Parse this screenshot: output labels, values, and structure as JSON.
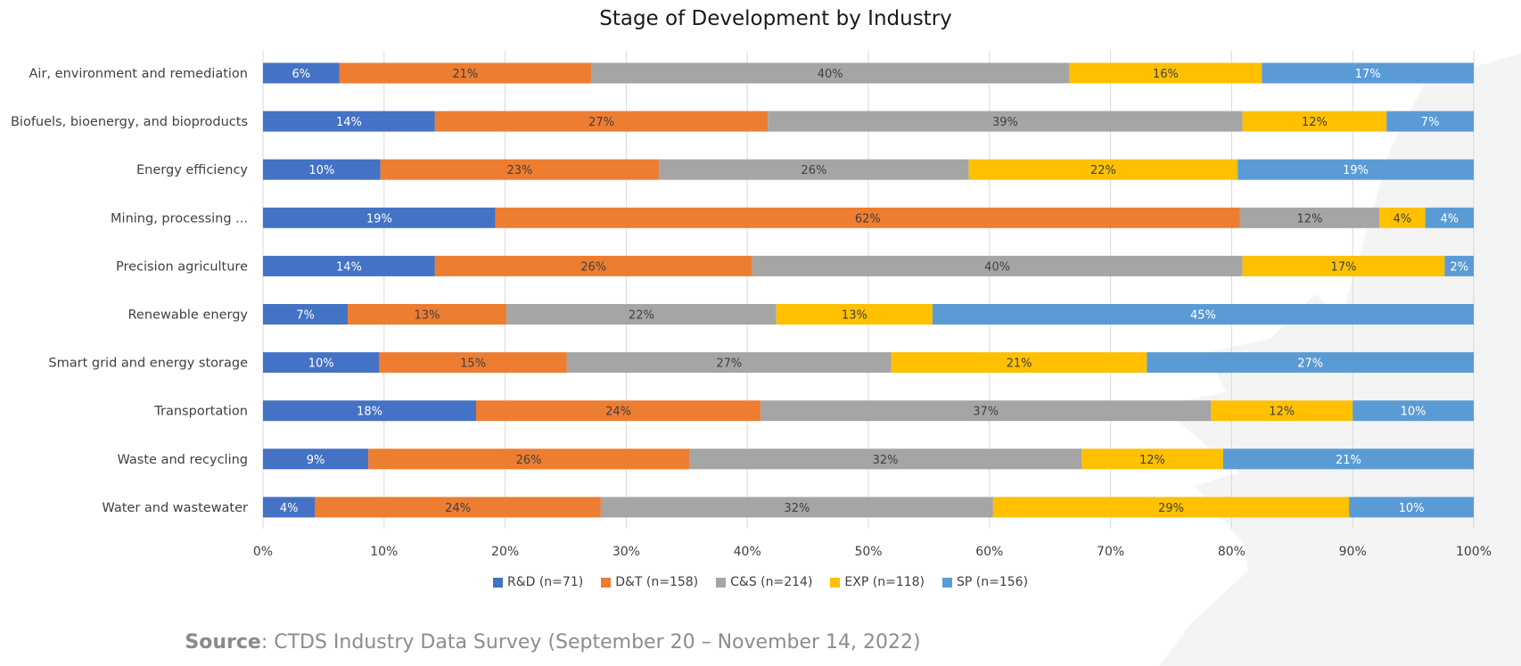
{
  "chart_data": {
    "type": "bar",
    "orientation": "horizontal-stacked",
    "title": "Stage of Development by Industry",
    "categories": [
      "Air, environment and remediation",
      "Biofuels, bioenergy, and bioproducts",
      "Energy efficiency",
      "Mining, processing ...",
      "Precision agriculture",
      "Renewable energy",
      "Smart grid and energy storage",
      "Transportation",
      "Waste and recycling",
      "Water and wastewater"
    ],
    "series": [
      {
        "name": "R&D (n=71)",
        "color": "#4472c4",
        "label_color": "#ffffff",
        "values": [
          6.3,
          14.2,
          9.7,
          19.2,
          14.2,
          7.0,
          9.6,
          17.6,
          8.7,
          4.3
        ],
        "labels": [
          "6%",
          "14%",
          "10%",
          "19%",
          "14%",
          "7%",
          "10%",
          "18%",
          "9%",
          "4%"
        ]
      },
      {
        "name": "D&T (n=158)",
        "color": "#ed7d31",
        "label_color": "#404040",
        "values": [
          20.8,
          27.5,
          23.0,
          61.5,
          26.2,
          13.1,
          15.5,
          23.5,
          26.5,
          23.6
        ],
        "labels": [
          "21%",
          "27%",
          "23%",
          "62%",
          "26%",
          "13%",
          "15%",
          "24%",
          "26%",
          "24%"
        ]
      },
      {
        "name": "C&S (n=214)",
        "color": "#a5a5a5",
        "label_color": "#404040",
        "values": [
          39.5,
          39.2,
          25.6,
          11.5,
          40.5,
          22.3,
          26.8,
          37.2,
          32.4,
          32.4
        ],
        "labels": [
          "40%",
          "39%",
          "26%",
          "12%",
          "40%",
          "22%",
          "27%",
          "37%",
          "32%",
          "32%"
        ]
      },
      {
        "name": "EXP (n=118)",
        "color": "#ffc000",
        "label_color": "#404040",
        "values": [
          15.9,
          11.9,
          22.2,
          3.8,
          16.7,
          12.9,
          21.1,
          11.7,
          11.7,
          29.4
        ],
        "labels": [
          "16%",
          "12%",
          "22%",
          "4%",
          "17%",
          "13%",
          "21%",
          "12%",
          "12%",
          "29%"
        ]
      },
      {
        "name": "SP (n=156)",
        "color": "#5b9bd5",
        "label_color": "#ffffff",
        "values": [
          17.5,
          7.2,
          19.5,
          4.0,
          2.4,
          44.7,
          27.0,
          10.0,
          20.7,
          10.3
        ],
        "labels": [
          "17%",
          "7%",
          "19%",
          "4%",
          "2%",
          "45%",
          "27%",
          "10%",
          "21%",
          "10%"
        ]
      }
    ],
    "xlim": [
      0,
      100
    ],
    "xticks": [
      "0%",
      "10%",
      "20%",
      "30%",
      "40%",
      "50%",
      "60%",
      "70%",
      "80%",
      "90%",
      "100%"
    ],
    "grid": true,
    "legend_position": "bottom"
  },
  "source": {
    "label": "Source",
    "text": ": CTDS Industry Data Survey (September 20 – November 14, 2022)"
  }
}
